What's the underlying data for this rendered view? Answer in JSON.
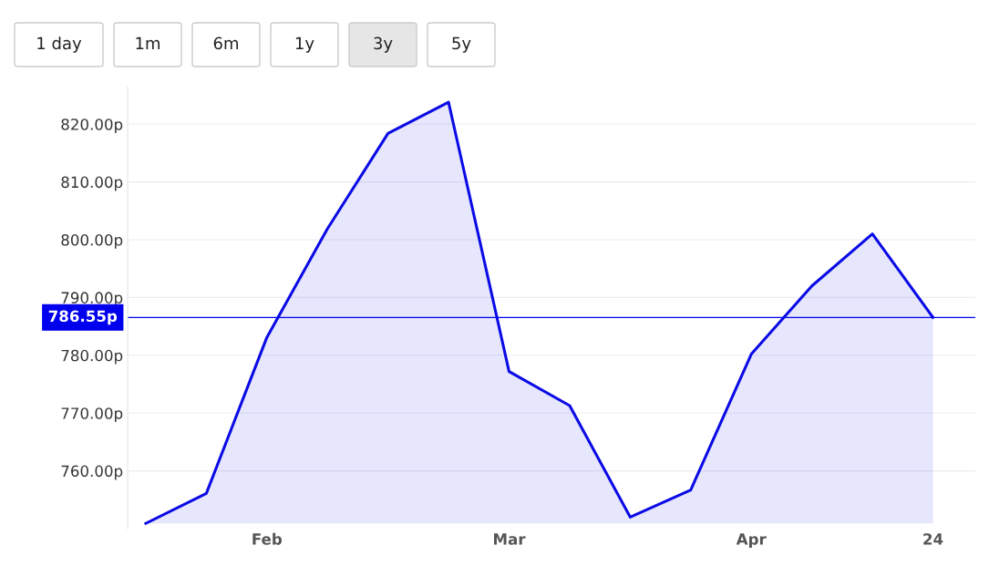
{
  "chart_data": {
    "type": "area",
    "categories": [
      null,
      null,
      "Feb",
      null,
      null,
      null,
      "Mar",
      null,
      null,
      null,
      "Apr",
      null,
      null,
      "24"
    ],
    "series": [
      {
        "color": "#0a0ae6",
        "values": [
          750.9,
          756.1,
          783.1,
          801.9,
          818.4,
          823.8,
          777.2,
          771.3,
          752.0,
          756.7,
          780.2,
          792.0,
          801.0,
          786.55
        ]
      }
    ],
    "ylim": [
      750,
      826.5
    ],
    "yticks": [
      {
        "value": 760,
        "label": "760.00p"
      },
      {
        "value": 770,
        "label": "770.00p"
      },
      {
        "value": 780,
        "label": "780.00p"
      },
      {
        "value": 790,
        "label": "790.00p"
      },
      {
        "value": 800,
        "label": "800.00p"
      },
      {
        "value": 810,
        "label": "810.00p"
      },
      {
        "value": 820,
        "label": "820.00p"
      }
    ],
    "ref_lines": [
      {
        "axis": "y",
        "value": 786.55,
        "label": "786.55p",
        "color": "#0000ee"
      }
    ],
    "annotations": [
      "1 day",
      "1m",
      "6m",
      "1y",
      "3y",
      "5y"
    ],
    "grid": "y"
  }
}
